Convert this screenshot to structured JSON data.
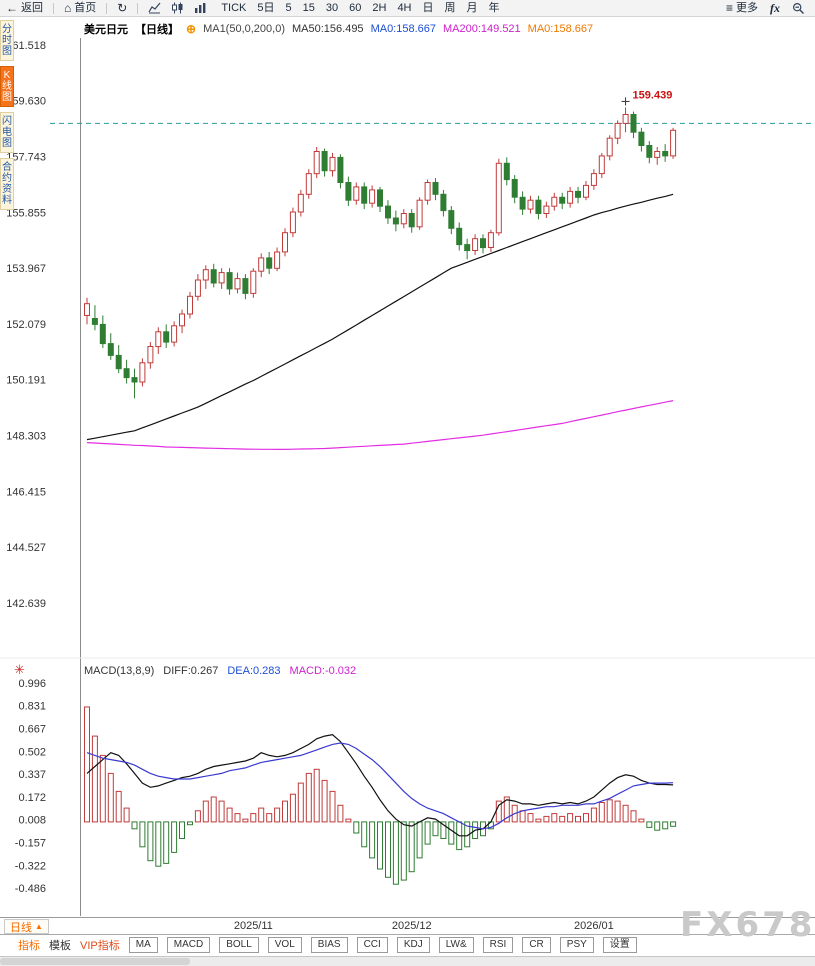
{
  "toolbar": {
    "back_label": "返回",
    "home_label": "首页",
    "periods": [
      "TICK",
      "5日",
      "5",
      "15",
      "30",
      "60",
      "2H",
      "4H",
      "日",
      "周",
      "月",
      "年"
    ],
    "more_label": "更多",
    "fx_label": "fx"
  },
  "icons": {
    "back": "←",
    "home": "⌂",
    "refresh": "↻",
    "more": "≡",
    "add_overlay": "⊕",
    "macd_flower": "✳",
    "period_arrow": "▲"
  },
  "sidebar": {
    "items": [
      {
        "label": "分时图",
        "active": false
      },
      {
        "label": "K线图",
        "active": true
      },
      {
        "label": "闪电图",
        "active": false
      },
      {
        "label": "合约资料",
        "active": false
      }
    ]
  },
  "chart_header": {
    "symbol": "美元日元",
    "period_tag": "【日线】",
    "ma_settings": "MA1(50,0,200,0)",
    "ma50": "MA50:156.495",
    "ma0_blue": "MA0:158.667",
    "ma200": "MA200:149.521",
    "ma0_orange": "MA0:158.667"
  },
  "macd_header": {
    "main": "MACD(13,8,9)",
    "diff": "DIFF:0.267",
    "dea": "DEA:0.283",
    "macd": "MACD:-0.032"
  },
  "bottom": {
    "period_label": "日线",
    "links": [
      {
        "label": "指标",
        "style": "orange"
      },
      {
        "label": "模板",
        "style": "dark"
      },
      {
        "label": "VIP指标",
        "style": "red"
      }
    ],
    "tabs": [
      "MA",
      "MACD",
      "BOLL",
      "VOL",
      "BIAS",
      "CCI",
      "KDJ",
      "LW&",
      "RSI",
      "CR",
      "PSY",
      "设置"
    ]
  },
  "watermark": "FX678",
  "chart_data": {
    "type": "candlestick",
    "symbol": "美元日元 (USD/JPY)",
    "interval": "日线",
    "price_axis": [
      "161.518",
      "159.630",
      "157.743",
      "155.855",
      "153.967",
      "152.079",
      "150.191",
      "148.303",
      "146.415",
      "144.527",
      "142.639"
    ],
    "macd_axis": [
      "0.996",
      "0.831",
      "0.667",
      "0.502",
      "0.337",
      "0.172",
      "0.008",
      "-0.157",
      "-0.322",
      "-0.486"
    ],
    "price_range": [
      142.639,
      161.518
    ],
    "macd_range": [
      -0.486,
      0.996
    ],
    "x_labels": [
      {
        "label": "2025/11",
        "index": 21
      },
      {
        "label": "2025/12",
        "index": 41
      },
      {
        "label": "2026/01",
        "index": 64
      }
    ],
    "dashed_line_price": 158.9,
    "high_label": "159.439",
    "high_value": 159.439,
    "high_index": 68,
    "colors": {
      "up": "#c23b3b",
      "down": "#2f7d32",
      "ma50": "#111111",
      "ma200": "#e32ee3",
      "diff_line": "#111111",
      "dea_line": "#3a3ad0",
      "dashed": "#2a9d9d",
      "annotation": "#cc1111"
    },
    "candles": [
      [
        152.4,
        153.0,
        152.1,
        152.8
      ],
      [
        152.3,
        152.75,
        151.9,
        152.1
      ],
      [
        152.1,
        152.4,
        151.3,
        151.45
      ],
      [
        151.45,
        151.8,
        150.9,
        151.05
      ],
      [
        151.05,
        151.4,
        150.45,
        150.6
      ],
      [
        150.6,
        150.9,
        150.1,
        150.3
      ],
      [
        150.3,
        150.6,
        149.6,
        150.15
      ],
      [
        150.15,
        150.95,
        150.0,
        150.8
      ],
      [
        150.8,
        151.5,
        150.6,
        151.35
      ],
      [
        151.35,
        152.0,
        151.1,
        151.85
      ],
      [
        151.85,
        152.1,
        151.3,
        151.5
      ],
      [
        151.5,
        152.2,
        151.35,
        152.05
      ],
      [
        152.05,
        152.6,
        151.8,
        152.45
      ],
      [
        152.45,
        153.2,
        152.3,
        153.05
      ],
      [
        153.05,
        153.8,
        152.9,
        153.6
      ],
      [
        153.6,
        154.1,
        153.3,
        153.95
      ],
      [
        153.95,
        154.15,
        153.35,
        153.5
      ],
      [
        153.5,
        154.0,
        153.3,
        153.85
      ],
      [
        153.85,
        154.0,
        153.1,
        153.3
      ],
      [
        153.3,
        153.85,
        153.15,
        153.65
      ],
      [
        153.65,
        153.8,
        152.95,
        153.15
      ],
      [
        153.15,
        154.0,
        153.0,
        153.9
      ],
      [
        153.9,
        154.5,
        153.7,
        154.35
      ],
      [
        154.35,
        154.55,
        153.8,
        154.0
      ],
      [
        154.0,
        154.7,
        153.9,
        154.55
      ],
      [
        154.55,
        155.35,
        154.4,
        155.2
      ],
      [
        155.2,
        156.05,
        155.05,
        155.9
      ],
      [
        155.9,
        156.65,
        155.75,
        156.5
      ],
      [
        156.5,
        157.35,
        156.35,
        157.2
      ],
      [
        157.2,
        158.1,
        157.05,
        157.95
      ],
      [
        157.95,
        158.05,
        157.1,
        157.3
      ],
      [
        157.3,
        157.9,
        157.1,
        157.75
      ],
      [
        157.75,
        157.85,
        156.7,
        156.9
      ],
      [
        156.9,
        157.1,
        156.1,
        156.3
      ],
      [
        156.3,
        156.9,
        156.15,
        156.75
      ],
      [
        156.75,
        156.9,
        156.0,
        156.2
      ],
      [
        156.2,
        156.8,
        156.05,
        156.65
      ],
      [
        156.65,
        156.75,
        155.9,
        156.1
      ],
      [
        156.1,
        156.3,
        155.5,
        155.7
      ],
      [
        155.7,
        155.95,
        155.25,
        155.5
      ],
      [
        155.5,
        156.0,
        155.35,
        155.85
      ],
      [
        155.85,
        156.0,
        155.2,
        155.4
      ],
      [
        155.4,
        156.4,
        155.3,
        156.3
      ],
      [
        156.3,
        157.0,
        156.15,
        156.9
      ],
      [
        156.9,
        157.05,
        156.3,
        156.5
      ],
      [
        156.5,
        156.65,
        155.75,
        155.95
      ],
      [
        155.95,
        156.1,
        155.15,
        155.35
      ],
      [
        155.35,
        155.55,
        154.6,
        154.8
      ],
      [
        154.8,
        155.0,
        154.3,
        154.6
      ],
      [
        154.6,
        155.15,
        154.45,
        155.0
      ],
      [
        155.0,
        155.15,
        154.5,
        154.7
      ],
      [
        154.7,
        155.3,
        154.55,
        155.2
      ],
      [
        155.2,
        157.7,
        155.1,
        157.55
      ],
      [
        157.55,
        157.75,
        156.8,
        157.0
      ],
      [
        157.0,
        157.15,
        156.2,
        156.4
      ],
      [
        156.4,
        156.6,
        155.8,
        156.0
      ],
      [
        156.0,
        156.45,
        155.85,
        156.3
      ],
      [
        156.3,
        156.45,
        155.65,
        155.85
      ],
      [
        155.85,
        156.25,
        155.7,
        156.1
      ],
      [
        156.1,
        156.55,
        155.95,
        156.4
      ],
      [
        156.4,
        156.55,
        156.0,
        156.2
      ],
      [
        156.2,
        156.75,
        156.05,
        156.6
      ],
      [
        156.6,
        156.75,
        156.2,
        156.4
      ],
      [
        156.4,
        156.95,
        156.3,
        156.8
      ],
      [
        156.8,
        157.35,
        156.65,
        157.2
      ],
      [
        157.2,
        157.9,
        157.05,
        157.8
      ],
      [
        157.8,
        158.5,
        157.65,
        158.4
      ],
      [
        158.4,
        159.0,
        158.2,
        158.9
      ],
      [
        158.9,
        159.439,
        158.6,
        159.2
      ],
      [
        159.2,
        159.3,
        158.4,
        158.6
      ],
      [
        158.6,
        158.75,
        157.95,
        158.15
      ],
      [
        158.15,
        158.3,
        157.55,
        157.75
      ],
      [
        157.75,
        158.1,
        157.5,
        157.95
      ],
      [
        157.95,
        158.2,
        157.6,
        157.8
      ],
      [
        157.8,
        158.75,
        157.7,
        158.667
      ]
    ],
    "ma_overlays": [
      {
        "name": "MA50",
        "last": 156.495,
        "color": "#111111",
        "values": [
          148.2,
          148.25,
          148.3,
          148.35,
          148.4,
          148.45,
          148.5,
          148.6,
          148.7,
          148.8,
          148.9,
          149.0,
          149.1,
          149.2,
          149.3,
          149.43,
          149.56,
          149.69,
          149.82,
          149.95,
          150.08,
          150.2,
          150.34,
          150.48,
          150.62,
          150.76,
          150.9,
          151.04,
          151.18,
          151.32,
          151.46,
          151.6,
          151.76,
          151.92,
          152.08,
          152.24,
          152.4,
          152.56,
          152.72,
          152.88,
          153.04,
          153.2,
          153.36,
          153.52,
          153.68,
          153.84,
          154.0,
          154.1,
          154.2,
          154.3,
          154.4,
          154.5,
          154.6,
          154.7,
          154.8,
          154.9,
          155.0,
          155.1,
          155.2,
          155.3,
          155.4,
          155.5,
          155.6,
          155.7,
          155.8,
          155.88,
          155.95,
          156.03,
          156.1,
          156.17,
          156.23,
          156.3,
          156.37,
          156.43,
          156.5
        ]
      },
      {
        "name": "MA200",
        "last": 149.521,
        "color": "#e32ee3",
        "values": [
          148.1,
          148.085,
          148.07,
          148.055,
          148.04,
          148.025,
          148.01,
          148.0,
          147.985,
          147.97,
          147.95,
          147.943,
          147.936,
          147.929,
          147.922,
          147.915,
          147.908,
          147.901,
          147.894,
          147.887,
          147.88,
          147.877,
          147.874,
          147.872,
          147.871,
          147.87,
          147.876,
          147.882,
          147.888,
          147.894,
          147.9,
          147.915,
          147.93,
          147.945,
          147.96,
          147.975,
          147.99,
          148.005,
          148.02,
          148.035,
          148.05,
          148.08,
          148.11,
          148.14,
          148.17,
          148.2,
          148.23,
          148.26,
          148.29,
          148.32,
          148.35,
          148.39,
          148.43,
          148.47,
          148.51,
          148.55,
          148.59,
          148.63,
          148.67,
          148.71,
          148.75,
          148.806,
          148.863,
          148.919,
          148.975,
          149.031,
          149.088,
          149.144,
          149.2,
          149.253,
          149.307,
          149.36,
          149.413,
          149.467,
          149.52
        ]
      }
    ],
    "macd": {
      "params": "(13,8,9)",
      "diff_last": 0.267,
      "dea_last": 0.283,
      "macd_last": -0.032,
      "hist": [
        0.83,
        0.62,
        0.48,
        0.35,
        0.22,
        0.1,
        -0.05,
        -0.18,
        -0.28,
        -0.32,
        -0.3,
        -0.22,
        -0.12,
        -0.02,
        0.08,
        0.15,
        0.18,
        0.15,
        0.1,
        0.06,
        0.02,
        0.06,
        0.1,
        0.06,
        0.1,
        0.15,
        0.2,
        0.28,
        0.35,
        0.38,
        0.3,
        0.22,
        0.12,
        0.02,
        -0.08,
        -0.18,
        -0.26,
        -0.34,
        -0.4,
        -0.45,
        -0.42,
        -0.36,
        -0.26,
        -0.16,
        -0.1,
        -0.12,
        -0.16,
        -0.2,
        -0.18,
        -0.12,
        -0.1,
        -0.05,
        0.15,
        0.18,
        0.12,
        0.08,
        0.06,
        0.02,
        0.04,
        0.06,
        0.04,
        0.06,
        0.04,
        0.06,
        0.1,
        0.14,
        0.16,
        0.15,
        0.12,
        0.08,
        0.02,
        -0.04,
        -0.06,
        -0.05,
        -0.032
      ],
      "diff": [
        0.35,
        0.4,
        0.45,
        0.5,
        0.48,
        0.42,
        0.35,
        0.28,
        0.25,
        0.26,
        0.28,
        0.3,
        0.32,
        0.33,
        0.35,
        0.38,
        0.4,
        0.41,
        0.42,
        0.43,
        0.44,
        0.46,
        0.5,
        0.48,
        0.47,
        0.48,
        0.5,
        0.53,
        0.56,
        0.6,
        0.62,
        0.63,
        0.58,
        0.5,
        0.42,
        0.33,
        0.25,
        0.16,
        0.08,
        0.02,
        -0.02,
        -0.03,
        0.0,
        0.03,
        0.02,
        -0.02,
        -0.06,
        -0.1,
        -0.1,
        -0.06,
        -0.05,
        0.0,
        0.12,
        0.16,
        0.15,
        0.13,
        0.13,
        0.12,
        0.13,
        0.14,
        0.13,
        0.14,
        0.13,
        0.15,
        0.18,
        0.23,
        0.28,
        0.32,
        0.34,
        0.33,
        0.3,
        0.28,
        0.27,
        0.27,
        0.267
      ],
      "dea": [
        0.5,
        0.48,
        0.46,
        0.45,
        0.44,
        0.43,
        0.41,
        0.38,
        0.35,
        0.33,
        0.32,
        0.31,
        0.31,
        0.31,
        0.32,
        0.33,
        0.34,
        0.35,
        0.37,
        0.38,
        0.39,
        0.41,
        0.43,
        0.44,
        0.45,
        0.46,
        0.47,
        0.48,
        0.5,
        0.52,
        0.54,
        0.56,
        0.57,
        0.56,
        0.53,
        0.49,
        0.45,
        0.4,
        0.34,
        0.28,
        0.22,
        0.17,
        0.13,
        0.1,
        0.08,
        0.06,
        0.03,
        0.0,
        -0.03,
        -0.04,
        -0.05,
        -0.04,
        -0.01,
        0.03,
        0.06,
        0.08,
        0.09,
        0.1,
        0.11,
        0.11,
        0.12,
        0.12,
        0.12,
        0.13,
        0.13,
        0.15,
        0.17,
        0.2,
        0.23,
        0.26,
        0.27,
        0.28,
        0.28,
        0.28,
        0.283
      ]
    }
  }
}
